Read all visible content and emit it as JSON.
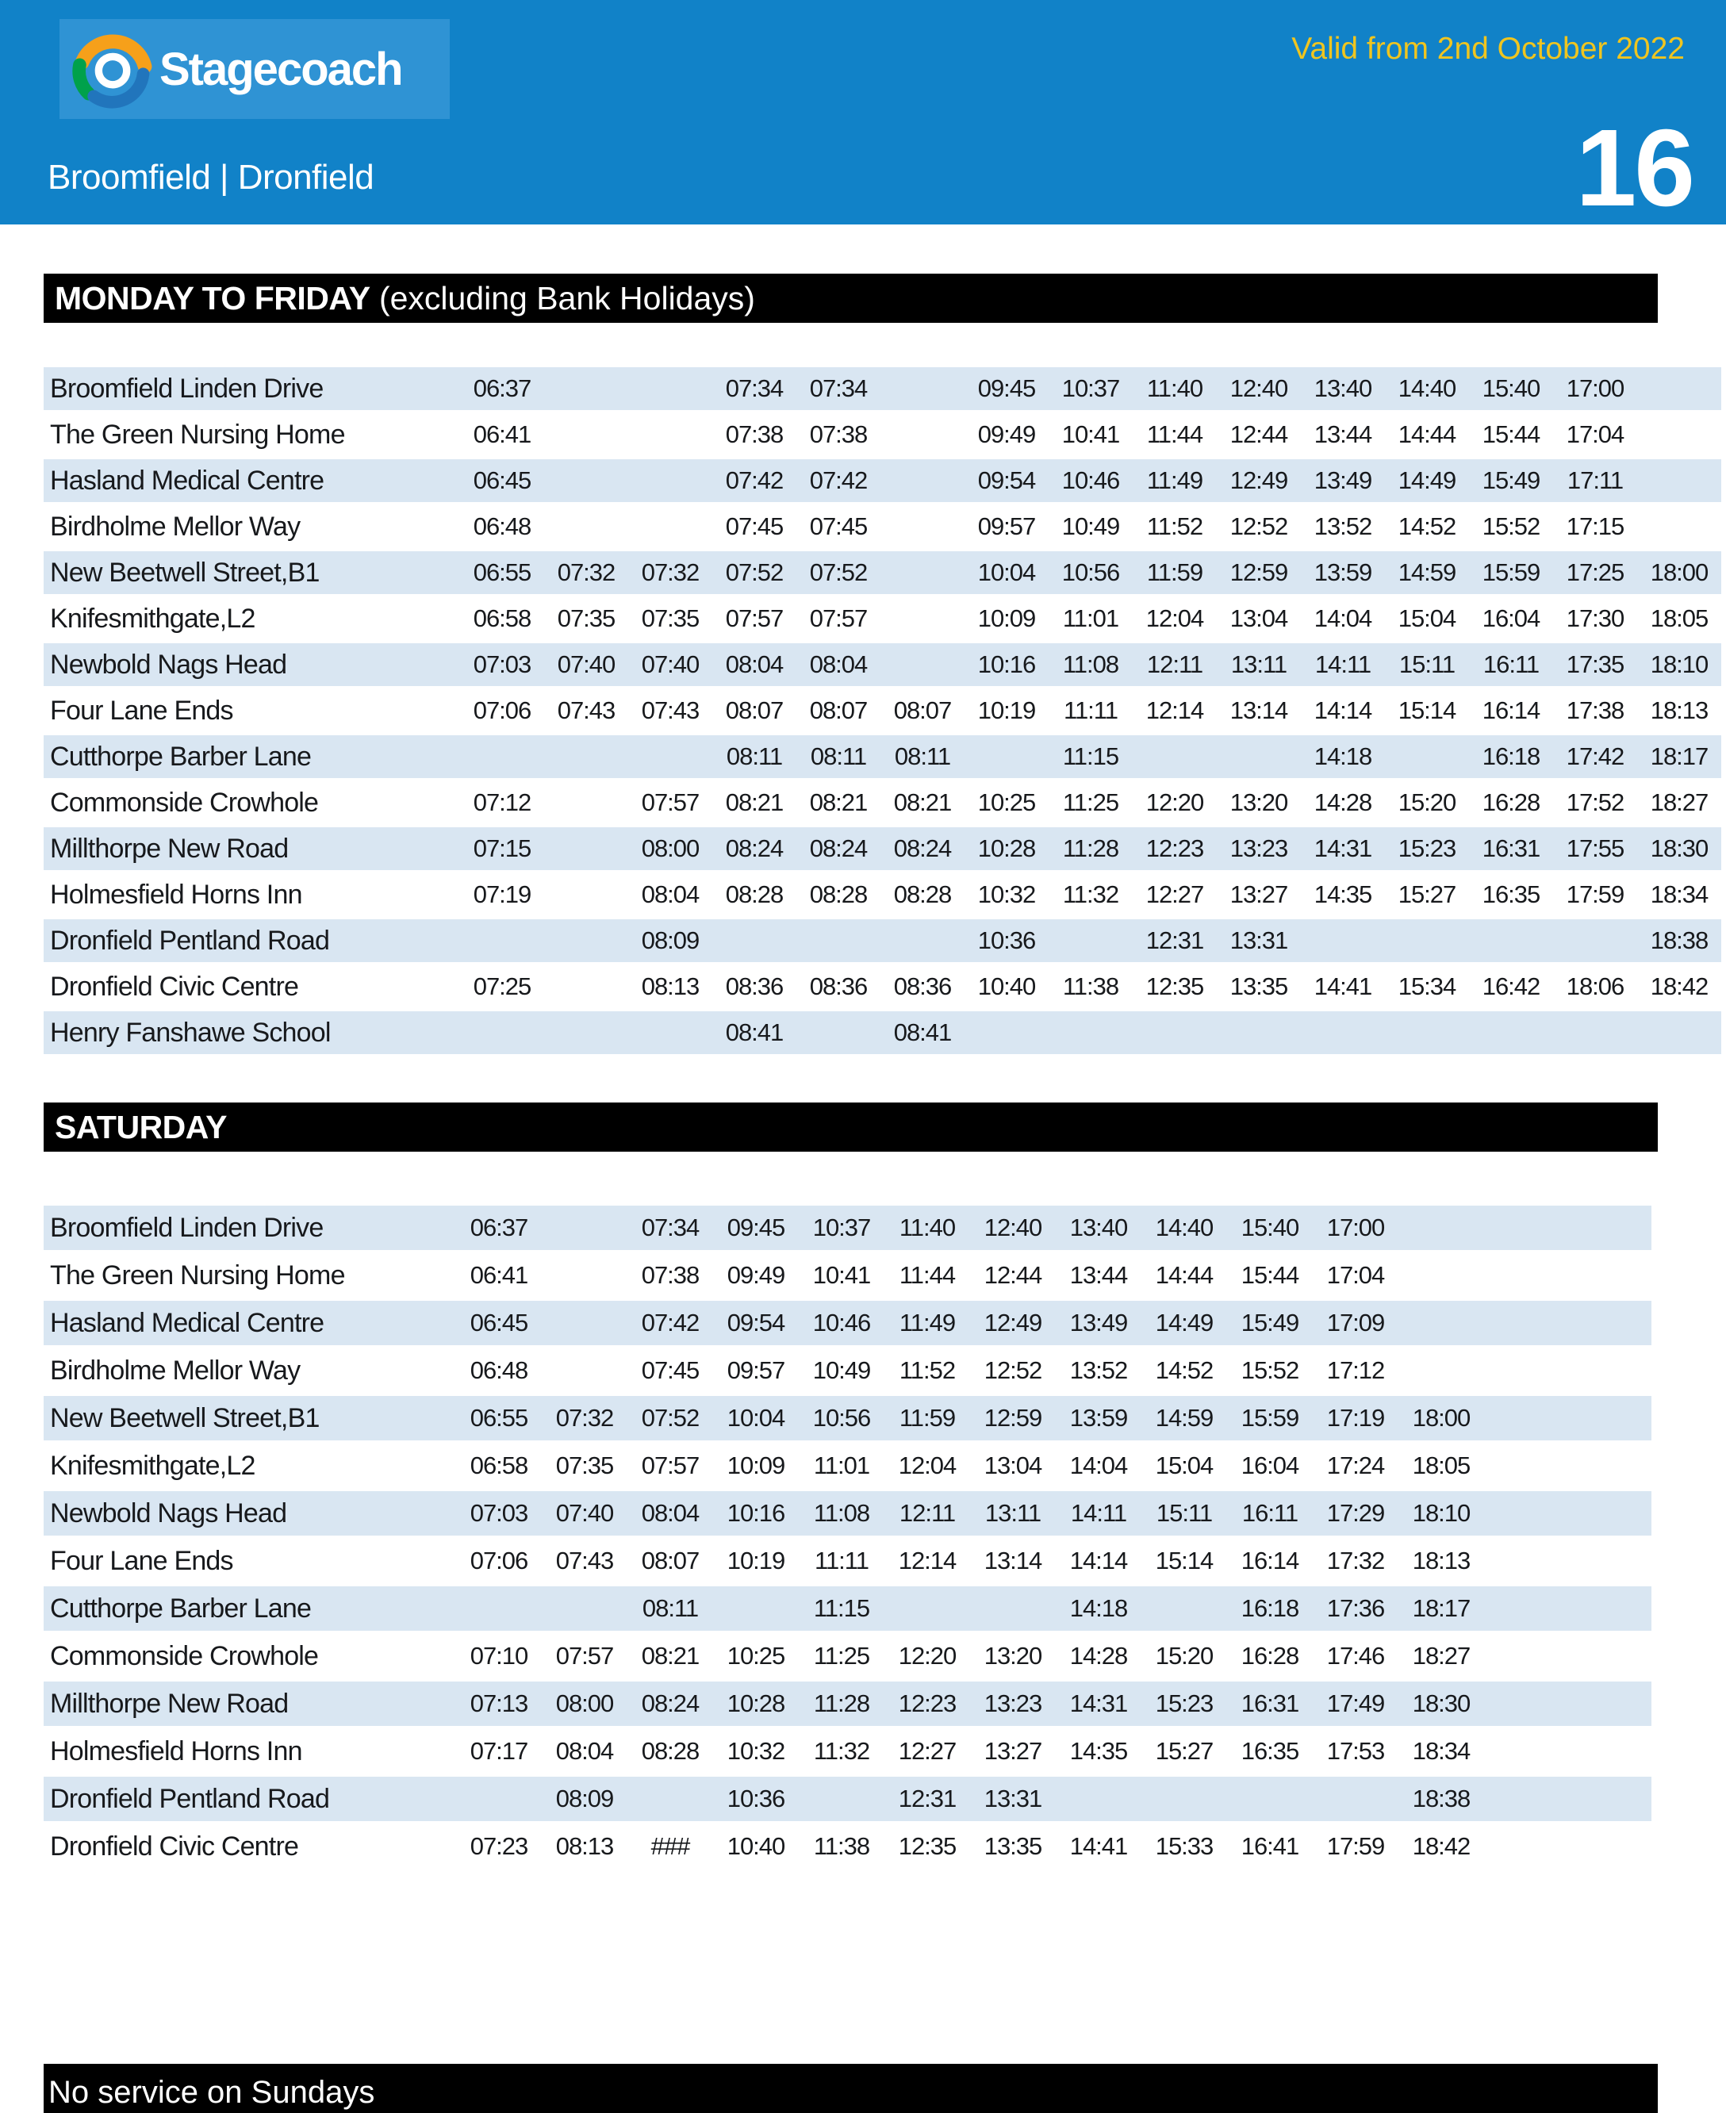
{
  "colors": {
    "header_blue": "#1182C8",
    "logo_box_blue": "#2F93D4",
    "yellow": "#F0C51F",
    "stripe_blue": "#D9E6F2",
    "logo_orange": "#F6A01A",
    "logo_green": "#00A14B",
    "logo_swirl_blue": "#2175BC"
  },
  "header": {
    "brand": "Stagecoach",
    "valid_from": "Valid from 2nd October 2022",
    "route_title": "Broomfield | Dronfield",
    "route_number": "16"
  },
  "sections": [
    {
      "id": "weekday",
      "bar_bold": "MONDAY TO FRIDAY",
      "bar_rest": " (excluding Bank Holidays)",
      "stops": [
        {
          "stop": "Broomfield Linden Drive",
          "times": [
            "06:37",
            "",
            "",
            "07:34",
            "07:34",
            "",
            "09:45",
            "10:37",
            "11:40",
            "12:40",
            "13:40",
            "14:40",
            "15:40",
            "17:00",
            ""
          ]
        },
        {
          "stop": "The Green Nursing Home",
          "times": [
            "06:41",
            "",
            "",
            "07:38",
            "07:38",
            "",
            "09:49",
            "10:41",
            "11:44",
            "12:44",
            "13:44",
            "14:44",
            "15:44",
            "17:04",
            ""
          ]
        },
        {
          "stop": "Hasland Medical Centre",
          "times": [
            "06:45",
            "",
            "",
            "07:42",
            "07:42",
            "",
            "09:54",
            "10:46",
            "11:49",
            "12:49",
            "13:49",
            "14:49",
            "15:49",
            "17:11",
            ""
          ]
        },
        {
          "stop": "Birdholme Mellor Way",
          "times": [
            "06:48",
            "",
            "",
            "07:45",
            "07:45",
            "",
            "09:57",
            "10:49",
            "11:52",
            "12:52",
            "13:52",
            "14:52",
            "15:52",
            "17:15",
            ""
          ]
        },
        {
          "stop": "New Beetwell Street,B1",
          "times": [
            "06:55",
            "07:32",
            "07:32",
            "07:52",
            "07:52",
            "",
            "10:04",
            "10:56",
            "11:59",
            "12:59",
            "13:59",
            "14:59",
            "15:59",
            "17:25",
            "18:00"
          ]
        },
        {
          "stop": "Knifesmithgate,L2",
          "times": [
            "06:58",
            "07:35",
            "07:35",
            "07:57",
            "07:57",
            "",
            "10:09",
            "11:01",
            "12:04",
            "13:04",
            "14:04",
            "15:04",
            "16:04",
            "17:30",
            "18:05"
          ]
        },
        {
          "stop": "Newbold Nags Head",
          "times": [
            "07:03",
            "07:40",
            "07:40",
            "08:04",
            "08:04",
            "",
            "10:16",
            "11:08",
            "12:11",
            "13:11",
            "14:11",
            "15:11",
            "16:11",
            "17:35",
            "18:10"
          ]
        },
        {
          "stop": "Four Lane Ends",
          "times": [
            "07:06",
            "07:43",
            "07:43",
            "08:07",
            "08:07",
            "08:07",
            "10:19",
            "11:11",
            "12:14",
            "13:14",
            "14:14",
            "15:14",
            "16:14",
            "17:38",
            "18:13"
          ]
        },
        {
          "stop": "Cutthorpe Barber Lane",
          "times": [
            "",
            "",
            "",
            "08:11",
            "08:11",
            "08:11",
            "",
            "11:15",
            "",
            "",
            "14:18",
            "",
            "16:18",
            "17:42",
            "18:17"
          ]
        },
        {
          "stop": "Commonside Crowhole",
          "times": [
            "07:12",
            "",
            "07:57",
            "08:21",
            "08:21",
            "08:21",
            "10:25",
            "11:25",
            "12:20",
            "13:20",
            "14:28",
            "15:20",
            "16:28",
            "17:52",
            "18:27"
          ]
        },
        {
          "stop": "Millthorpe New Road",
          "times": [
            "07:15",
            "",
            "08:00",
            "08:24",
            "08:24",
            "08:24",
            "10:28",
            "11:28",
            "12:23",
            "13:23",
            "14:31",
            "15:23",
            "16:31",
            "17:55",
            "18:30"
          ]
        },
        {
          "stop": "Holmesfield Horns Inn",
          "times": [
            "07:19",
            "",
            "08:04",
            "08:28",
            "08:28",
            "08:28",
            "10:32",
            "11:32",
            "12:27",
            "13:27",
            "14:35",
            "15:27",
            "16:35",
            "17:59",
            "18:34"
          ]
        },
        {
          "stop": "Dronfield Pentland Road",
          "times": [
            "",
            "",
            "08:09",
            "",
            "",
            "",
            "10:36",
            "",
            "12:31",
            "13:31",
            "",
            "",
            "",
            "",
            "18:38"
          ]
        },
        {
          "stop": "Dronfield Civic Centre",
          "times": [
            "07:25",
            "",
            "08:13",
            "08:36",
            "08:36",
            "08:36",
            "10:40",
            "11:38",
            "12:35",
            "13:35",
            "14:41",
            "15:34",
            "16:42",
            "18:06",
            "18:42"
          ]
        },
        {
          "stop": "Henry Fanshawe School",
          "times": [
            "",
            "",
            "",
            "08:41",
            "",
            "08:41",
            "",
            "",
            "",
            "",
            "",
            "",
            "",
            "",
            ""
          ]
        }
      ]
    },
    {
      "id": "saturday",
      "bar_bold": "SATURDAY",
      "bar_rest": "",
      "stops": [
        {
          "stop": "Broomfield Linden Drive",
          "times": [
            "06:37",
            "",
            "07:34",
            "09:45",
            "10:37",
            "11:40",
            "12:40",
            "13:40",
            "14:40",
            "15:40",
            "17:00",
            ""
          ]
        },
        {
          "stop": "The Green Nursing Home",
          "times": [
            "06:41",
            "",
            "07:38",
            "09:49",
            "10:41",
            "11:44",
            "12:44",
            "13:44",
            "14:44",
            "15:44",
            "17:04",
            ""
          ]
        },
        {
          "stop": "Hasland Medical Centre",
          "times": [
            "06:45",
            "",
            "07:42",
            "09:54",
            "10:46",
            "11:49",
            "12:49",
            "13:49",
            "14:49",
            "15:49",
            "17:09",
            ""
          ]
        },
        {
          "stop": "Birdholme Mellor Way",
          "times": [
            "06:48",
            "",
            "07:45",
            "09:57",
            "10:49",
            "11:52",
            "12:52",
            "13:52",
            "14:52",
            "15:52",
            "17:12",
            ""
          ]
        },
        {
          "stop": "New Beetwell Street,B1",
          "times": [
            "06:55",
            "07:32",
            "07:52",
            "10:04",
            "10:56",
            "11:59",
            "12:59",
            "13:59",
            "14:59",
            "15:59",
            "17:19",
            "18:00"
          ]
        },
        {
          "stop": "Knifesmithgate,L2",
          "times": [
            "06:58",
            "07:35",
            "07:57",
            "10:09",
            "11:01",
            "12:04",
            "13:04",
            "14:04",
            "15:04",
            "16:04",
            "17:24",
            "18:05"
          ]
        },
        {
          "stop": "Newbold Nags Head",
          "times": [
            "07:03",
            "07:40",
            "08:04",
            "10:16",
            "11:08",
            "12:11",
            "13:11",
            "14:11",
            "15:11",
            "16:11",
            "17:29",
            "18:10"
          ]
        },
        {
          "stop": "Four Lane Ends",
          "times": [
            "07:06",
            "07:43",
            "08:07",
            "10:19",
            "11:11",
            "12:14",
            "13:14",
            "14:14",
            "15:14",
            "16:14",
            "17:32",
            "18:13"
          ]
        },
        {
          "stop": "Cutthorpe Barber Lane",
          "times": [
            "",
            "",
            "08:11",
            "",
            "11:15",
            "",
            "",
            "14:18",
            "",
            "16:18",
            "17:36",
            "18:17"
          ]
        },
        {
          "stop": "Commonside Crowhole",
          "times": [
            "07:10",
            "07:57",
            "08:21",
            "10:25",
            "11:25",
            "12:20",
            "13:20",
            "14:28",
            "15:20",
            "16:28",
            "17:46",
            "18:27"
          ]
        },
        {
          "stop": "Millthorpe New Road",
          "times": [
            "07:13",
            "08:00",
            "08:24",
            "10:28",
            "11:28",
            "12:23",
            "13:23",
            "14:31",
            "15:23",
            "16:31",
            "17:49",
            "18:30"
          ]
        },
        {
          "stop": "Holmesfield Horns Inn",
          "times": [
            "07:17",
            "08:04",
            "08:28",
            "10:32",
            "11:32",
            "12:27",
            "13:27",
            "14:35",
            "15:27",
            "16:35",
            "17:53",
            "18:34"
          ]
        },
        {
          "stop": "Dronfield Pentland Road",
          "times": [
            "",
            "08:09",
            "",
            "10:36",
            "",
            "12:31",
            "13:31",
            "",
            "",
            "",
            "",
            "18:38"
          ]
        },
        {
          "stop": "Dronfield Civic Centre",
          "times": [
            "07:23",
            "08:13",
            "###",
            "10:40",
            "11:38",
            "12:35",
            "13:35",
            "14:41",
            "15:33",
            "16:41",
            "17:59",
            "18:42"
          ]
        }
      ]
    }
  ],
  "footer": {
    "note": "No service on Sundays"
  }
}
